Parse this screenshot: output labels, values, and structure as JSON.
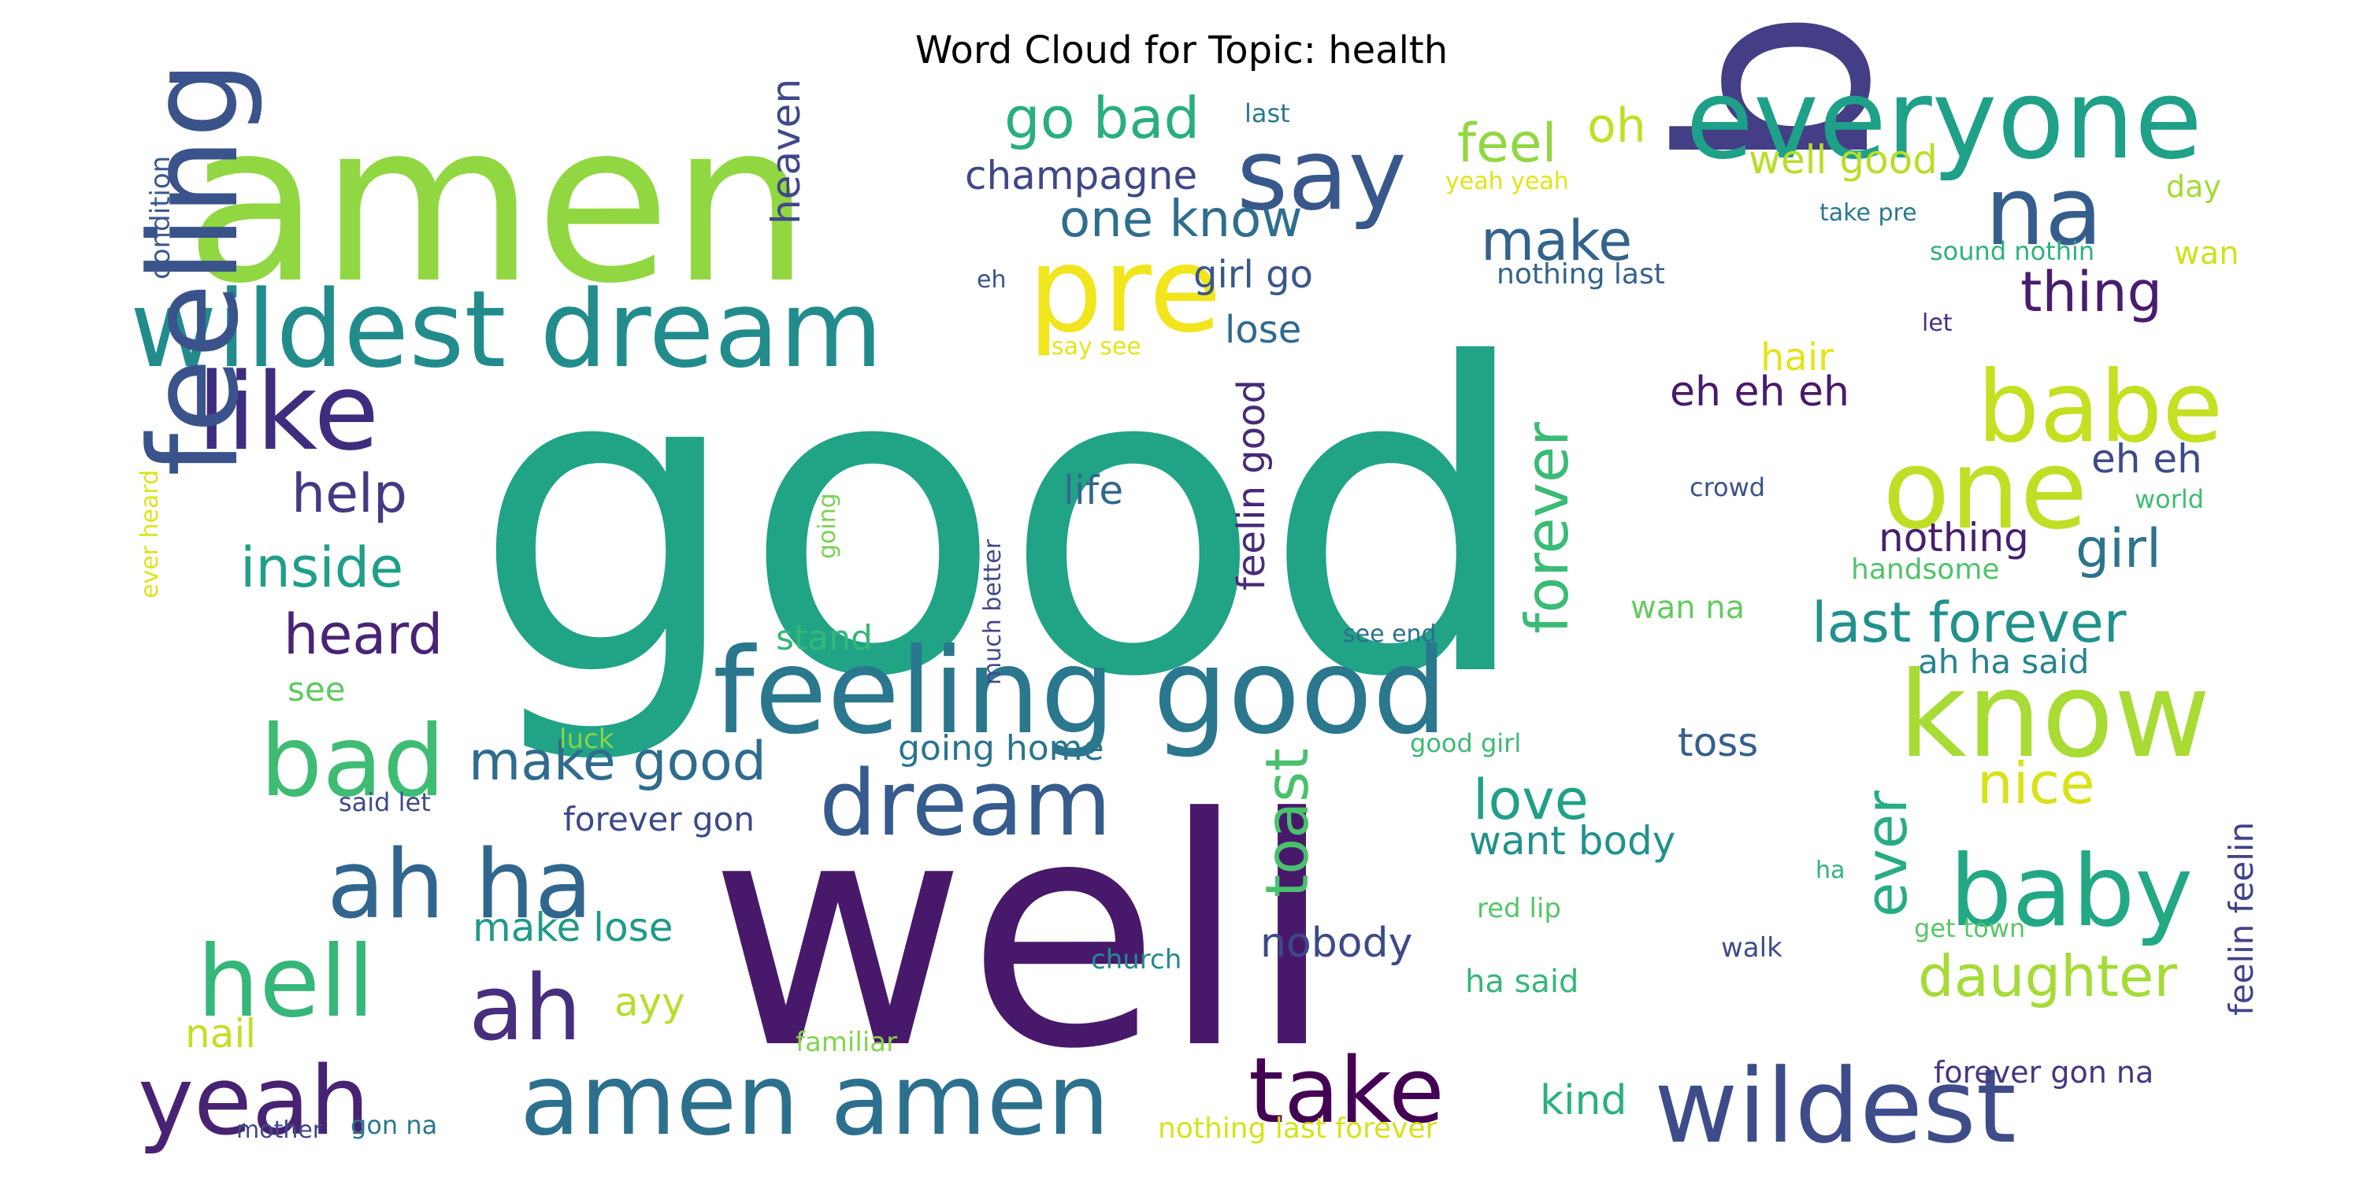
{
  "title": "Word Cloud for Topic: health",
  "words": [
    {
      "text": "good",
      "color": "#21a386"
    },
    {
      "text": "well",
      "color": "#48196b"
    },
    {
      "text": "body",
      "color": "#433e85"
    },
    {
      "text": "amen",
      "color": "#91d742"
    },
    {
      "text": "feeling good",
      "color": "#2a778e"
    },
    {
      "text": "wildest dream",
      "color": "#228c8d"
    },
    {
      "text": "everyone",
      "color": "#1fa088"
    },
    {
      "text": "say",
      "color": "#38588c"
    },
    {
      "text": "pre",
      "color": "#f1e51d"
    },
    {
      "text": "na",
      "color": "#355e8d"
    },
    {
      "text": "like",
      "color": "#3f2c7e"
    },
    {
      "text": "feeling",
      "color": "#3b538b"
    },
    {
      "text": "babe",
      "color": "#c5df21"
    },
    {
      "text": "one",
      "color": "#bfdf25"
    },
    {
      "text": "know",
      "color": "#a8db34"
    },
    {
      "text": "bad",
      "color": "#3ebc73"
    },
    {
      "text": "dream",
      "color": "#365c8d"
    },
    {
      "text": "ah ha",
      "color": "#31668e"
    },
    {
      "text": "hell",
      "color": "#35b779"
    },
    {
      "text": "ah",
      "color": "#472f7d"
    },
    {
      "text": "yeah",
      "color": "#482374"
    },
    {
      "text": "amen amen",
      "color": "#2d708e"
    },
    {
      "text": "take",
      "color": "#440154"
    },
    {
      "text": "wildest",
      "color": "#3e4c8a"
    },
    {
      "text": "baby",
      "color": "#22a884"
    },
    {
      "text": "go bad",
      "color": "#29af7f"
    },
    {
      "text": "one know",
      "color": "#2e6e8e"
    },
    {
      "text": "champagne",
      "color": "#3f4788"
    },
    {
      "text": "feel",
      "color": "#93d741"
    },
    {
      "text": "oh",
      "color": "#c0df25"
    },
    {
      "text": "make",
      "color": "#33638d"
    },
    {
      "text": "thing",
      "color": "#481c6e"
    },
    {
      "text": "girl go",
      "color": "#39568c"
    },
    {
      "text": "lose",
      "color": "#306a8e"
    },
    {
      "text": "help",
      "color": "#443983"
    },
    {
      "text": "inside",
      "color": "#1f9f88"
    },
    {
      "text": "heard",
      "color": "#482475"
    },
    {
      "text": "make good",
      "color": "#2f6c8e"
    },
    {
      "text": "forever",
      "color": "#3bbb75"
    },
    {
      "text": "toast",
      "color": "#4ac16d"
    },
    {
      "text": "heaven",
      "color": "#3f4889"
    },
    {
      "text": "feelin good",
      "color": "#472a7a"
    },
    {
      "text": "life",
      "color": "#31688e"
    },
    {
      "text": "last forever",
      "color": "#21918c"
    },
    {
      "text": "girl",
      "color": "#2c738e"
    },
    {
      "text": "nothing",
      "color": "#481f70"
    },
    {
      "text": "eh eh eh",
      "color": "#481a6c"
    },
    {
      "text": "eh eh",
      "color": "#3e4a89"
    },
    {
      "text": "hair",
      "color": "#e2e418"
    },
    {
      "text": "well good",
      "color": "#b8de29"
    },
    {
      "text": "going home",
      "color": "#2b748e"
    },
    {
      "text": "love",
      "color": "#1fa187"
    },
    {
      "text": "want body",
      "color": "#20928c"
    },
    {
      "text": "ever",
      "color": "#27ad81"
    },
    {
      "text": "nice",
      "color": "#d8e219"
    },
    {
      "text": "toss",
      "color": "#355f8d"
    },
    {
      "text": "ah ha said",
      "color": "#25848e"
    },
    {
      "text": "feelin feelin",
      "color": "#414287"
    },
    {
      "text": "daughter",
      "color": "#a5db36"
    },
    {
      "text": "make lose",
      "color": "#1f9a8a"
    },
    {
      "text": "nobody",
      "color": "#3e4989"
    },
    {
      "text": "kind",
      "color": "#2ab07f"
    },
    {
      "text": "ayy",
      "color": "#b5de2b"
    },
    {
      "text": "nail",
      "color": "#c2df23"
    },
    {
      "text": "forever gon",
      "color": "#3e4989"
    },
    {
      "text": "stand",
      "color": "#35b779"
    },
    {
      "text": "see",
      "color": "#5ec962"
    },
    {
      "text": "luck",
      "color": "#86d549"
    },
    {
      "text": "said let",
      "color": "#3e4a89"
    },
    {
      "text": "much better",
      "color": "#3e4a89"
    },
    {
      "text": "going",
      "color": "#7ad151"
    },
    {
      "text": "ever heard",
      "color": "#dde318"
    },
    {
      "text": "condition",
      "color": "#38598c"
    },
    {
      "text": "last",
      "color": "#29798e"
    },
    {
      "text": "eh",
      "color": "#3b528b"
    },
    {
      "text": "say see",
      "color": "#e5e419"
    },
    {
      "text": "nothing last",
      "color": "#33628d"
    },
    {
      "text": "yeah yeah",
      "color": "#e2e418"
    },
    {
      "text": "take pre",
      "color": "#2a788e"
    },
    {
      "text": "sound nothin",
      "color": "#2db27d"
    },
    {
      "text": "day",
      "color": "#a2da37"
    },
    {
      "text": "wan",
      "color": "#d0e11c"
    },
    {
      "text": "let",
      "color": "#46307e"
    },
    {
      "text": "crowd",
      "color": "#3b528b"
    },
    {
      "text": "world",
      "color": "#3fbc73"
    },
    {
      "text": "handsome",
      "color": "#4ec36b"
    },
    {
      "text": "wan na",
      "color": "#63cb5f"
    },
    {
      "text": "see end",
      "color": "#2e6f8e"
    },
    {
      "text": "good girl",
      "color": "#3bbb75"
    },
    {
      "text": "red lip",
      "color": "#56c667"
    },
    {
      "text": "ha said",
      "color": "#35b779"
    },
    {
      "text": "church",
      "color": "#238a8d"
    },
    {
      "text": "walk",
      "color": "#3e4c8a"
    },
    {
      "text": "ha",
      "color": "#2eb37c"
    },
    {
      "text": "get town",
      "color": "#58c765"
    },
    {
      "text": "forever gon na",
      "color": "#453781"
    },
    {
      "text": "familiar",
      "color": "#84d44b"
    },
    {
      "text": "mother",
      "color": "#3f4889"
    },
    {
      "text": "gon na",
      "color": "#2a788e"
    },
    {
      "text": "nothing last forever",
      "color": "#d5e21a"
    }
  ]
}
